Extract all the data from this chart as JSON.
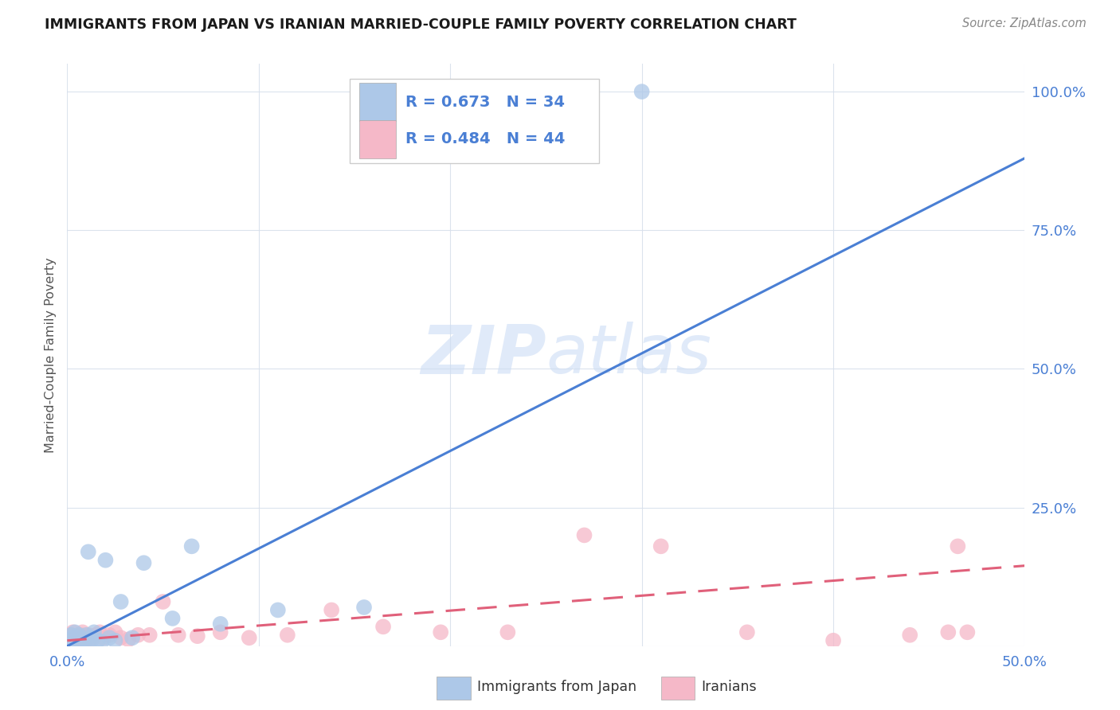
{
  "title": "IMMIGRANTS FROM JAPAN VS IRANIAN MARRIED-COUPLE FAMILY POVERTY CORRELATION CHART",
  "source": "Source: ZipAtlas.com",
  "ylabel": "Married-Couple Family Poverty",
  "xlim": [
    0.0,
    0.5
  ],
  "ylim": [
    0.0,
    1.05
  ],
  "japan_R": 0.673,
  "japan_N": 34,
  "iran_R": 0.484,
  "iran_N": 44,
  "japan_color": "#adc8e8",
  "iran_color": "#f5b8c8",
  "japan_line_color": "#4a7fd4",
  "iran_line_color": "#e0607a",
  "watermark_zip": "ZIP",
  "watermark_atlas": "atlas",
  "japan_line_x0": 0.0,
  "japan_line_y0": 0.0,
  "japan_line_x1": 0.5,
  "japan_line_y1": 0.88,
  "iran_line_x0": 0.0,
  "iran_line_y0": 0.01,
  "iran_line_x1": 0.5,
  "iran_line_y1": 0.145,
  "japan_scatter_x": [
    0.001,
    0.002,
    0.002,
    0.003,
    0.003,
    0.004,
    0.004,
    0.005,
    0.005,
    0.006,
    0.006,
    0.007,
    0.007,
    0.008,
    0.009,
    0.01,
    0.011,
    0.012,
    0.013,
    0.014,
    0.016,
    0.018,
    0.02,
    0.022,
    0.025,
    0.028,
    0.034,
    0.04,
    0.055,
    0.065,
    0.08,
    0.11,
    0.155,
    0.3
  ],
  "japan_scatter_y": [
    0.01,
    0.005,
    0.02,
    0.008,
    0.015,
    0.012,
    0.025,
    0.005,
    0.015,
    0.01,
    0.02,
    0.008,
    0.015,
    0.01,
    0.005,
    0.02,
    0.17,
    0.015,
    0.012,
    0.025,
    0.01,
    0.008,
    0.155,
    0.015,
    0.01,
    0.08,
    0.015,
    0.15,
    0.05,
    0.18,
    0.04,
    0.065,
    0.07,
    1.0
  ],
  "iran_scatter_x": [
    0.001,
    0.002,
    0.002,
    0.003,
    0.003,
    0.004,
    0.004,
    0.005,
    0.005,
    0.006,
    0.007,
    0.008,
    0.009,
    0.01,
    0.011,
    0.012,
    0.013,
    0.015,
    0.017,
    0.019,
    0.022,
    0.025,
    0.028,
    0.032,
    0.037,
    0.043,
    0.05,
    0.058,
    0.068,
    0.08,
    0.095,
    0.115,
    0.138,
    0.165,
    0.195,
    0.23,
    0.27,
    0.31,
    0.355,
    0.4,
    0.44,
    0.46,
    0.465,
    0.47
  ],
  "iran_scatter_y": [
    0.005,
    0.01,
    0.02,
    0.008,
    0.025,
    0.012,
    0.018,
    0.008,
    0.015,
    0.012,
    0.02,
    0.025,
    0.01,
    0.015,
    0.02,
    0.012,
    0.015,
    0.02,
    0.025,
    0.015,
    0.02,
    0.025,
    0.015,
    0.012,
    0.02,
    0.02,
    0.08,
    0.02,
    0.018,
    0.025,
    0.015,
    0.02,
    0.065,
    0.035,
    0.025,
    0.025,
    0.2,
    0.18,
    0.025,
    0.01,
    0.02,
    0.025,
    0.18,
    0.025
  ]
}
